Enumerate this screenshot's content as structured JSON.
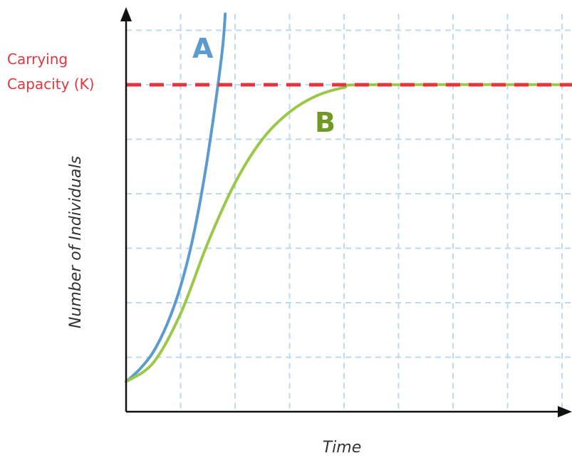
{
  "chart_data": {
    "type": "line",
    "xlabel": "Time",
    "ylabel": "Number of Individuals",
    "xlim": [
      0,
      8.3
    ],
    "ylim": [
      0,
      7.3
    ],
    "grid": true,
    "carrying_capacity": {
      "label_line1": "Carrying",
      "label_line2": "Capacity (K)",
      "value": 6,
      "color": "#e0363f"
    },
    "series": [
      {
        "name": "A",
        "color": "#5b9bd0",
        "label_color": "#5b9bd0",
        "x": [
          0,
          0.25,
          0.5,
          0.75,
          1.0,
          1.25,
          1.5,
          1.75,
          1.82
        ],
        "y": [
          0.55,
          0.78,
          1.1,
          1.6,
          2.3,
          3.3,
          4.7,
          6.5,
          7.3
        ]
      },
      {
        "name": "B",
        "color": "#9cc84a",
        "label_color": "#6f9a26",
        "x": [
          0,
          0.5,
          1.0,
          1.5,
          2.0,
          2.5,
          3.0,
          3.5,
          4.0,
          4.4,
          8.3
        ],
        "y": [
          0.55,
          0.9,
          1.8,
          3.1,
          4.2,
          5.0,
          5.5,
          5.8,
          5.95,
          6.0,
          6.0
        ]
      }
    ]
  }
}
